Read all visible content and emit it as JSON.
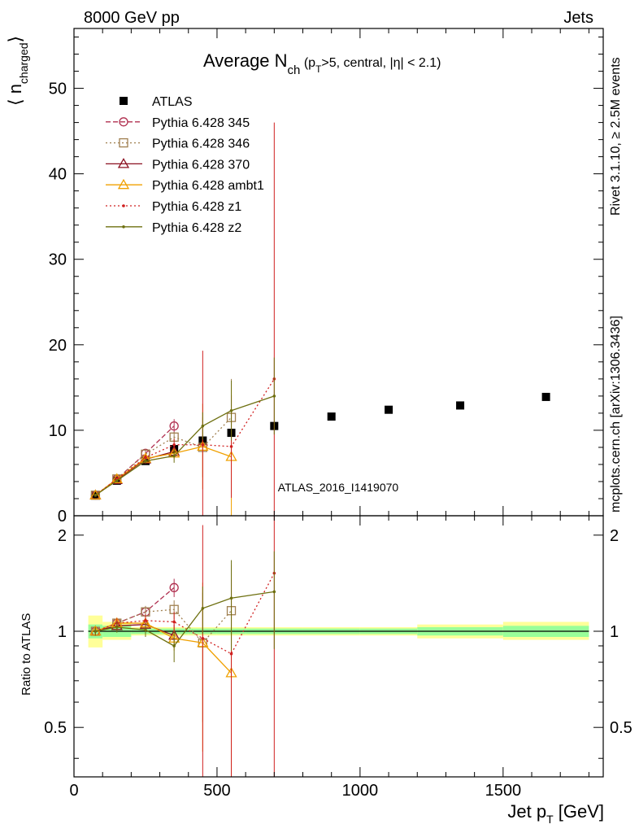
{
  "header": {
    "left": "8000 GeV pp",
    "right": "Jets",
    "right_vertical_1": "Rivet 3.1.10, ≥ 2.5M events",
    "right_vertical_2": "mcplots.cern.ch [arXiv:1306.3436]",
    "watermark": "ATLAS_2016_I1419070"
  },
  "chart_data": [
    {
      "type": "scatter",
      "panel": "main",
      "title_parts": {
        "main": "Average N",
        "sub": "ch",
        "rest1": " (p",
        "sub2": "T",
        "rest2": ">5, central, |η| < 2.1)"
      },
      "ylabel_parts": {
        "open": "⟨ n",
        "sub": "charged",
        "close": "⟩"
      },
      "xlim": [
        0,
        1850
      ],
      "ylim": [
        0,
        57
      ],
      "y_ticks": [
        0,
        10,
        20,
        30,
        40,
        50
      ],
      "y_tick_labels": [
        "0",
        "10",
        "20",
        "30",
        "40",
        "50"
      ],
      "legend_position": "top-left",
      "series": [
        {
          "name": "ATLAS",
          "color": "#000000",
          "marker": "square-filled",
          "line": "none",
          "x": [
            75,
            150,
            250,
            350,
            450,
            550,
            700,
            900,
            1100,
            1350,
            1650
          ],
          "y": [
            2.4,
            4.1,
            6.4,
            7.8,
            8.8,
            9.7,
            10.5,
            11.6,
            12.4,
            12.9,
            13.9
          ],
          "err": [
            0.1,
            0.1,
            0.2,
            0.2,
            0.3,
            0.3,
            0.3,
            0.3,
            0.3,
            0.4,
            0.4
          ]
        },
        {
          "name": "Pythia 6.428 345",
          "color": "#b03050",
          "marker": "circle-open",
          "line": "dashed",
          "x": [
            75,
            150,
            250,
            350
          ],
          "y": [
            2.4,
            4.3,
            7.3,
            10.5
          ],
          "err": [
            0.1,
            0.2,
            0.3,
            0.8
          ]
        },
        {
          "name": "Pythia 6.428 346",
          "color": "#a08050",
          "marker": "square-open",
          "line": "dotted",
          "x": [
            75,
            150,
            250,
            350,
            450,
            550
          ],
          "y": [
            2.4,
            4.3,
            7.2,
            9.2,
            8.0,
            11.5
          ],
          "err": [
            0.1,
            0.2,
            0.3,
            0.6,
            3.5,
            4.5
          ]
        },
        {
          "name": "Pythia 6.428 370",
          "color": "#8b1020",
          "marker": "triangle-open",
          "line": "solid",
          "x": [
            75,
            150,
            250,
            350
          ],
          "y": [
            2.4,
            4.2,
            6.6,
            7.5
          ],
          "err": [
            0.1,
            0.2,
            0.3,
            0.6
          ]
        },
        {
          "name": "Pythia 6.428 ambt1",
          "color": "#f0a000",
          "marker": "triangle-open",
          "line": "solid",
          "x": [
            75,
            150,
            250,
            350,
            450,
            550
          ],
          "y": [
            2.4,
            4.3,
            6.7,
            7.3,
            8.1,
            6.9
          ],
          "err": [
            0.1,
            0.2,
            0.3,
            0.6,
            5.0,
            8.0
          ]
        },
        {
          "name": "Pythia 6.428 z1",
          "color": "#d02020",
          "marker": "dot",
          "line": "dotted",
          "x": [
            75,
            150,
            250,
            350,
            450,
            550,
            700
          ],
          "y": [
            2.4,
            4.3,
            6.8,
            8.3,
            8.3,
            8.1,
            16.0
          ],
          "err": [
            0.1,
            0.2,
            0.3,
            0.7,
            11.0,
            6.0,
            30.0
          ]
        },
        {
          "name": "Pythia 6.428 z2",
          "color": "#6e7010",
          "marker": "dot",
          "line": "solid",
          "x": [
            75,
            150,
            250,
            350,
            450,
            550,
            700
          ],
          "y": [
            2.4,
            4.1,
            6.4,
            7.0,
            10.5,
            12.3,
            14.0
          ],
          "err": [
            0.1,
            0.2,
            0.3,
            0.8,
            1.6,
            3.5,
            4.5
          ]
        }
      ]
    },
    {
      "type": "scatter",
      "panel": "ratio",
      "ylabel": "Ratio to ATLAS",
      "xlabel_parts": {
        "main": "Jet p",
        "sub": "T",
        "rest": " [GeV]"
      },
      "xlim": [
        0,
        1850
      ],
      "ylim": [
        0.35,
        2.3
      ],
      "log_y": true,
      "x_ticks": [
        0,
        500,
        1000,
        1500
      ],
      "x_tick_labels": [
        "0",
        "500",
        "1000",
        "1500"
      ],
      "y_ticks": [
        0.5,
        1,
        2
      ],
      "y_tick_labels": [
        "0.5",
        "1",
        "2"
      ],
      "bands": [
        {
          "x0": 50,
          "x1": 100,
          "inner": [
            0.95,
            1.05
          ],
          "outer": [
            0.89,
            1.12
          ]
        },
        {
          "x0": 100,
          "x1": 200,
          "inner": [
            0.96,
            1.04
          ],
          "outer": [
            0.94,
            1.07
          ]
        },
        {
          "x0": 200,
          "x1": 300,
          "inner": [
            0.98,
            1.02
          ],
          "outer": [
            0.97,
            1.03
          ]
        },
        {
          "x0": 300,
          "x1": 400,
          "inner": [
            0.98,
            1.02
          ],
          "outer": [
            0.97,
            1.03
          ]
        },
        {
          "x0": 400,
          "x1": 500,
          "inner": [
            0.98,
            1.02
          ],
          "outer": [
            0.97,
            1.03
          ]
        },
        {
          "x0": 500,
          "x1": 600,
          "inner": [
            0.98,
            1.02
          ],
          "outer": [
            0.97,
            1.03
          ]
        },
        {
          "x0": 600,
          "x1": 800,
          "inner": [
            0.98,
            1.02
          ],
          "outer": [
            0.97,
            1.03
          ]
        },
        {
          "x0": 800,
          "x1": 1000,
          "inner": [
            0.98,
            1.02
          ],
          "outer": [
            0.97,
            1.03
          ]
        },
        {
          "x0": 1000,
          "x1": 1200,
          "inner": [
            0.98,
            1.02
          ],
          "outer": [
            0.97,
            1.03
          ]
        },
        {
          "x0": 1200,
          "x1": 1500,
          "inner": [
            0.97,
            1.03
          ],
          "outer": [
            0.95,
            1.05
          ]
        },
        {
          "x0": 1500,
          "x1": 1800,
          "inner": [
            0.96,
            1.04
          ],
          "outer": [
            0.94,
            1.07
          ]
        }
      ],
      "series": [
        {
          "name": "Pythia 6.428 345",
          "color": "#b03050",
          "marker": "circle-open",
          "line": "dashed",
          "x": [
            75,
            150,
            250,
            350
          ],
          "y": [
            1.0,
            1.06,
            1.15,
            1.37
          ],
          "err": [
            0.03,
            0.04,
            0.05,
            0.09
          ]
        },
        {
          "name": "Pythia 6.428 346",
          "color": "#a08050",
          "marker": "square-open",
          "line": "dotted",
          "x": [
            75,
            150,
            250,
            350,
            450,
            550
          ],
          "y": [
            1.0,
            1.06,
            1.15,
            1.17,
            0.92,
            1.16
          ],
          "err": [
            0.03,
            0.04,
            0.05,
            0.08,
            0.4,
            0.45
          ]
        },
        {
          "name": "Pythia 6.428 370",
          "color": "#8b1020",
          "marker": "triangle-open",
          "line": "solid",
          "x": [
            75,
            150,
            250,
            350
          ],
          "y": [
            1.0,
            1.04,
            1.05,
            0.97
          ],
          "err": [
            0.03,
            0.04,
            0.05,
            0.08
          ]
        },
        {
          "name": "Pythia 6.428 ambt1",
          "color": "#f0a000",
          "marker": "triangle-open",
          "line": "solid",
          "x": [
            75,
            150,
            250,
            350,
            450,
            550
          ],
          "y": [
            1.0,
            1.06,
            1.06,
            0.95,
            0.92,
            0.74
          ],
          "err": [
            0.03,
            0.04,
            0.05,
            0.08,
            0.5,
            0.6
          ]
        },
        {
          "name": "Pythia 6.428 z1",
          "color": "#d02020",
          "marker": "dot",
          "line": "dotted",
          "x": [
            75,
            150,
            250,
            350,
            450,
            550,
            700
          ],
          "y": [
            1.0,
            1.06,
            1.08,
            1.07,
            0.95,
            0.85,
            1.52
          ],
          "err": [
            0.03,
            0.04,
            0.05,
            0.08,
            1.2,
            0.6,
            3.0
          ]
        },
        {
          "name": "Pythia 6.428 z2",
          "color": "#6e7010",
          "marker": "dot",
          "line": "solid",
          "x": [
            75,
            150,
            250,
            350,
            450,
            550,
            700
          ],
          "y": [
            1.0,
            1.03,
            1.01,
            0.9,
            1.18,
            1.27,
            1.33
          ],
          "err": [
            0.03,
            0.04,
            0.05,
            0.1,
            0.2,
            0.4,
            0.45
          ]
        }
      ]
    }
  ]
}
